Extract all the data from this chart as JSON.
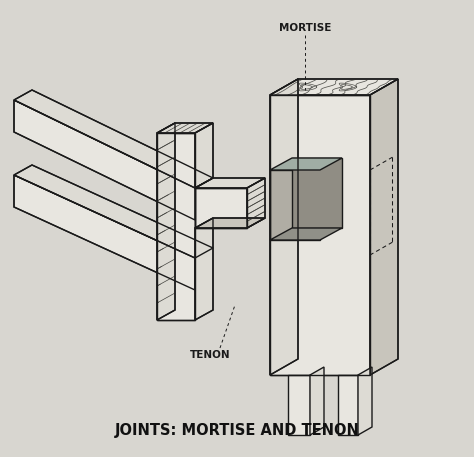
{
  "title": "JOINTS: MORTISE AND TENON",
  "label_mortise": "MORTISE",
  "label_tenon": "TENON",
  "bg_color": "#d8d6d0",
  "line_color": "#1a1a1a",
  "face_white": "#e8e6e0",
  "face_light": "#dddbd4",
  "face_mid": "#c8c5bc",
  "face_dark": "#b5b2a8",
  "hatch_color": "#555550",
  "title_fontsize": 10.5,
  "label_fontsize": 7.5
}
